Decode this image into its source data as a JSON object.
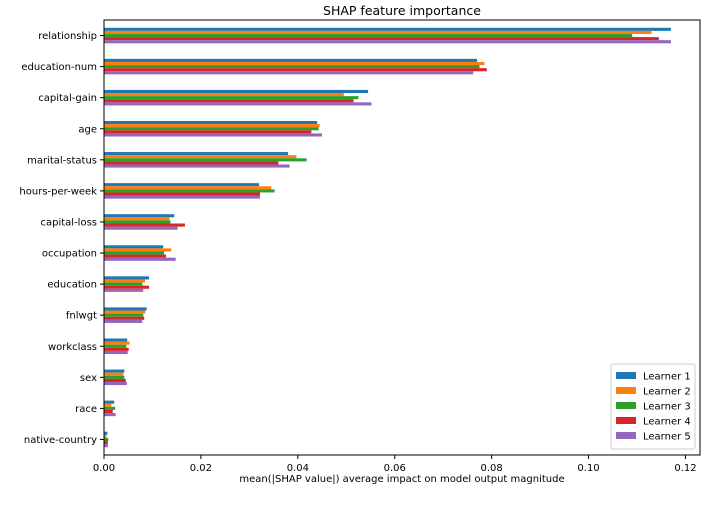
{
  "chart_data": {
    "type": "bar",
    "orientation": "horizontal",
    "title": "SHAP feature importance",
    "xlabel": "mean(|SHAP value|) average impact on model output magnitude",
    "ylabel": "",
    "xlim": [
      0,
      0.123
    ],
    "xticks": [
      0,
      0.02,
      0.04,
      0.06,
      0.08,
      0.1,
      0.12
    ],
    "xtick_labels": [
      "0.00",
      "0.02",
      "0.04",
      "0.06",
      "0.08",
      "0.10",
      "0.12"
    ],
    "grid": false,
    "legend_position": "bottom-right",
    "categories": [
      "relationship",
      "education-num",
      "capital-gain",
      "age",
      "marital-status",
      "hours-per-week",
      "capital-loss",
      "occupation",
      "education",
      "fnlwgt",
      "workclass",
      "sex",
      "race",
      "native-country"
    ],
    "series": [
      {
        "name": "Learner 1",
        "color": "#1f77b4",
        "values": [
          0.117,
          0.077,
          0.0545,
          0.044,
          0.038,
          0.032,
          0.0145,
          0.0122,
          0.0093,
          0.0088,
          0.0048,
          0.0042,
          0.0021,
          0.0007
        ]
      },
      {
        "name": "Learner 2",
        "color": "#ff7f0e",
        "values": [
          0.113,
          0.0785,
          0.0495,
          0.0445,
          0.0397,
          0.0345,
          0.0135,
          0.0139,
          0.0085,
          0.0085,
          0.0053,
          0.004,
          0.0015,
          0.0005
        ]
      },
      {
        "name": "Learner 3",
        "color": "#2ca02c",
        "values": [
          0.109,
          0.0775,
          0.0525,
          0.0443,
          0.0418,
          0.0352,
          0.0137,
          0.0124,
          0.0079,
          0.0081,
          0.0046,
          0.0042,
          0.0023,
          0.0009
        ]
      },
      {
        "name": "Learner 4",
        "color": "#d62728",
        "values": [
          0.1145,
          0.079,
          0.0515,
          0.0428,
          0.036,
          0.0322,
          0.0167,
          0.0128,
          0.0093,
          0.0083,
          0.0051,
          0.0045,
          0.0018,
          0.0008
        ]
      },
      {
        "name": "Learner 5",
        "color": "#9467bd",
        "values": [
          0.117,
          0.0762,
          0.0552,
          0.045,
          0.0383,
          0.0322,
          0.0152,
          0.0148,
          0.0081,
          0.0079,
          0.0049,
          0.0047,
          0.0024,
          0.0008
        ]
      }
    ]
  }
}
